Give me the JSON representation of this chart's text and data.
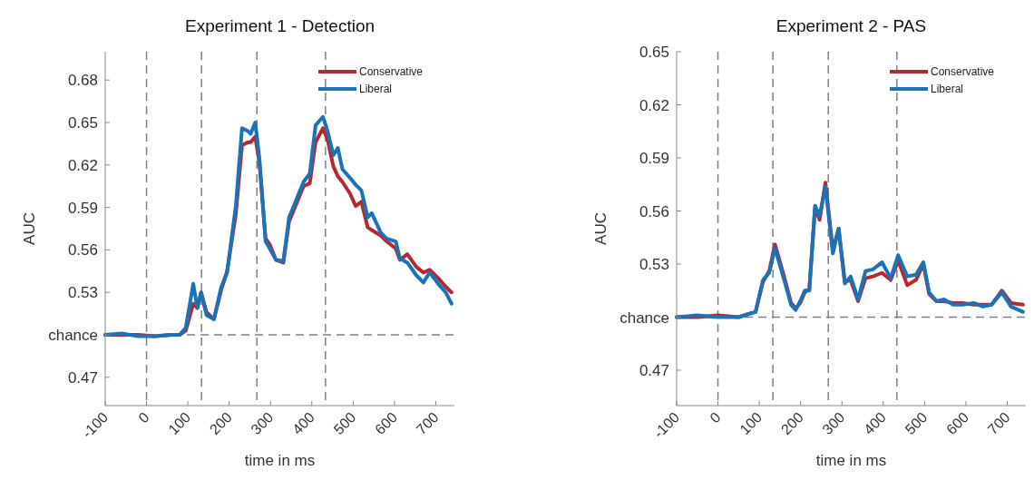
{
  "chart_data": [
    {
      "type": "line",
      "title": "Experiment 1 - Detection",
      "xlabel": "time in ms",
      "ylabel": "AUC",
      "x": [
        -100,
        -60,
        -20,
        20,
        60,
        80,
        95,
        113,
        123,
        132,
        145,
        163,
        181,
        195,
        216,
        231,
        245,
        252,
        263,
        273,
        288,
        298,
        313,
        331,
        345,
        359,
        380,
        395,
        409,
        427,
        438,
        452,
        463,
        474,
        492,
        506,
        520,
        535,
        545,
        567,
        581,
        603,
        613,
        631,
        653,
        670,
        685,
        706,
        724,
        738
      ],
      "series": [
        {
          "name": "Conservative",
          "color": "#b8292f",
          "values": [
            0.5,
            0.5,
            0.5,
            0.499,
            0.5,
            0.5,
            0.503,
            0.522,
            0.519,
            0.53,
            0.516,
            0.511,
            0.532,
            0.545,
            0.585,
            0.634,
            0.636,
            0.636,
            0.64,
            0.622,
            0.568,
            0.564,
            0.553,
            0.551,
            0.58,
            0.59,
            0.605,
            0.607,
            0.636,
            0.646,
            0.638,
            0.619,
            0.612,
            0.608,
            0.6,
            0.591,
            0.594,
            0.576,
            0.574,
            0.57,
            0.566,
            0.561,
            0.553,
            0.557,
            0.548,
            0.544,
            0.546,
            0.54,
            0.534,
            0.53
          ]
        },
        {
          "name": "Liberal",
          "color": "#1a72b8",
          "values": [
            0.5,
            0.501,
            0.499,
            0.499,
            0.5,
            0.5,
            0.505,
            0.536,
            0.519,
            0.53,
            0.514,
            0.511,
            0.534,
            0.544,
            0.591,
            0.646,
            0.644,
            0.642,
            0.65,
            0.625,
            0.566,
            0.561,
            0.553,
            0.552,
            0.583,
            0.593,
            0.608,
            0.614,
            0.648,
            0.654,
            0.644,
            0.627,
            0.632,
            0.617,
            0.611,
            0.606,
            0.602,
            0.583,
            0.586,
            0.572,
            0.568,
            0.566,
            0.554,
            0.551,
            0.542,
            0.537,
            0.544,
            0.536,
            0.53,
            0.522
          ]
        }
      ],
      "xlim": [
        -100,
        745
      ],
      "xticks": [
        -100,
        0,
        100,
        200,
        300,
        400,
        500,
        600,
        700
      ],
      "ylim": [
        0.45,
        0.7
      ],
      "yticks": [
        0.47,
        {
          "value": 0.5,
          "label": "chance"
        },
        0.53,
        0.56,
        0.59,
        0.62,
        0.65,
        0.68
      ],
      "ref_lines": [
        {
          "axis": "y",
          "value": 0.5,
          "line_style": "dashed",
          "color": "#808080"
        },
        {
          "axis": "x",
          "value": 0,
          "line_style": "dashed",
          "color": "#808080"
        },
        {
          "axis": "x",
          "value": 133,
          "line_style": "dashed",
          "color": "#808080"
        },
        {
          "axis": "x",
          "value": 267,
          "line_style": "dashed",
          "color": "#808080"
        },
        {
          "axis": "x",
          "value": 433,
          "line_style": "dashed",
          "color": "#808080"
        }
      ],
      "legend": "top right",
      "grid": false
    },
    {
      "type": "line",
      "title": "Experiment 2 - PAS",
      "xlabel": "time in ms",
      "ylabel": "AUC",
      "x": [
        -100,
        -50,
        0,
        50,
        91,
        109,
        124,
        138,
        159,
        177,
        188,
        199,
        210,
        221,
        235,
        246,
        260,
        278,
        292,
        307,
        321,
        339,
        357,
        375,
        397,
        418,
        436,
        458,
        479,
        497,
        511,
        529,
        547,
        569,
        591,
        619,
        641,
        662,
        687,
        709,
        738
      ],
      "series": [
        {
          "name": "Conservative",
          "color": "#b8292f",
          "values": [
            0.5,
            0.5,
            0.501,
            0.5,
            0.503,
            0.52,
            0.526,
            0.541,
            0.524,
            0.508,
            0.505,
            0.508,
            0.514,
            0.516,
            0.562,
            0.555,
            0.576,
            0.538,
            0.55,
            0.52,
            0.521,
            0.509,
            0.522,
            0.523,
            0.525,
            0.521,
            0.532,
            0.518,
            0.521,
            0.53,
            0.513,
            0.509,
            0.509,
            0.508,
            0.508,
            0.507,
            0.507,
            0.507,
            0.515,
            0.508,
            0.507
          ]
        },
        {
          "name": "Liberal",
          "color": "#1a72b8",
          "values": [
            0.5,
            0.501,
            0.5,
            0.5,
            0.503,
            0.521,
            0.525,
            0.539,
            0.522,
            0.507,
            0.504,
            0.509,
            0.515,
            0.515,
            0.563,
            0.557,
            0.574,
            0.536,
            0.55,
            0.519,
            0.523,
            0.51,
            0.526,
            0.527,
            0.531,
            0.522,
            0.535,
            0.523,
            0.524,
            0.531,
            0.514,
            0.509,
            0.51,
            0.507,
            0.507,
            0.508,
            0.506,
            0.507,
            0.514,
            0.506,
            0.503
          ]
        }
      ],
      "xlim": [
        -100,
        745
      ],
      "xticks": [
        -100,
        0,
        100,
        200,
        300,
        400,
        500,
        600,
        700
      ],
      "ylim": [
        0.45,
        0.65
      ],
      "yticks": [
        0.47,
        {
          "value": 0.5,
          "label": "chance"
        },
        0.53,
        0.56,
        0.59,
        0.62,
        0.65
      ],
      "ref_lines": [
        {
          "axis": "y",
          "value": 0.5,
          "line_style": "dashed",
          "color": "#808080"
        },
        {
          "axis": "x",
          "value": 0,
          "line_style": "dashed",
          "color": "#808080"
        },
        {
          "axis": "x",
          "value": 133,
          "line_style": "dashed",
          "color": "#808080"
        },
        {
          "axis": "x",
          "value": 267,
          "line_style": "dashed",
          "color": "#808080"
        },
        {
          "axis": "x",
          "value": 433,
          "line_style": "dashed",
          "color": "#808080"
        }
      ],
      "legend": "top right",
      "grid": false
    }
  ]
}
